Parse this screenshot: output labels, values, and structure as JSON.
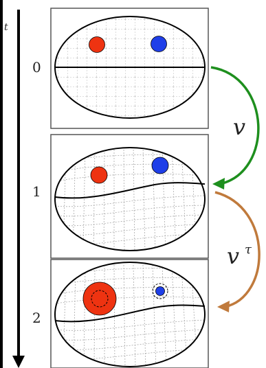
{
  "axis": {
    "tick_label": "t"
  },
  "steps": [
    {
      "index": "0"
    },
    {
      "index": "1"
    },
    {
      "index": "2"
    }
  ],
  "transitions": [
    {
      "label": "v",
      "color": "#1e8f1e"
    },
    {
      "label": "v",
      "superscript": "τ",
      "color": "#c07a3c"
    }
  ],
  "colors": {
    "red": "#ee3311",
    "blue": "#1f3fe8",
    "panel_background": "#ffffff",
    "grid": "#a8a8a8"
  }
}
